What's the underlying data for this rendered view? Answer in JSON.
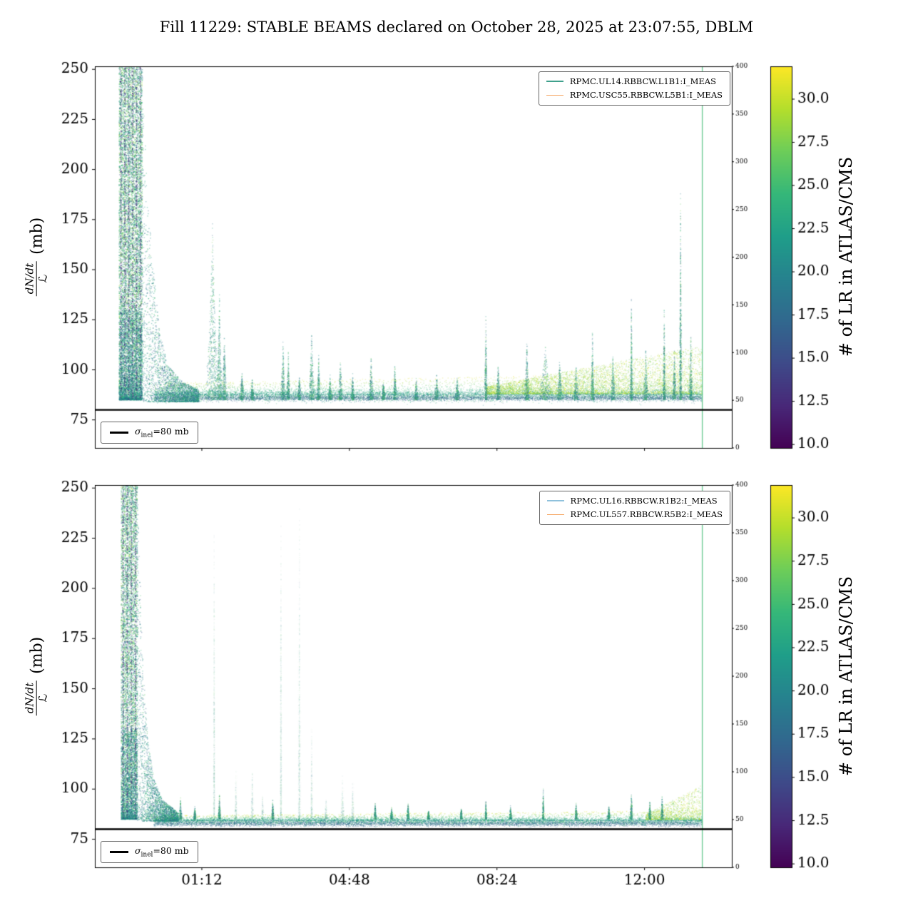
{
  "title": "Fill 11229: STABLE BEAMS declared on October 28, 2025 at 23:07:55, DBLM",
  "ylabel": {
    "num": "dN/dt",
    "den": "ℒ",
    "unit": "(mb)"
  },
  "colorbar": {
    "label": "# of LR in ATLAS/CMS",
    "ticks": [
      10.0,
      12.5,
      15.0,
      17.5,
      20.0,
      22.5,
      25.0,
      27.5,
      30.0
    ],
    "lim": [
      9.8,
      31.9
    ],
    "colormap": "viridis"
  },
  "chart_data": [
    {
      "type": "scatter",
      "panel": "top",
      "series": [
        {
          "name": "RPMC.UL14.RBBCW.L1B1:I_MEAS",
          "color": "#3fa08c"
        },
        {
          "name": "RPMC.USC55.RBBCW.L5B1:I_MEAS",
          "color": "#f5a45f"
        }
      ],
      "sigma": {
        "sym": "σ",
        "sub": "inel",
        "rest": "=80 mb",
        "value": 80
      },
      "xlim": [
        -0.54,
        15.0
      ],
      "ylim": [
        61,
        251.5
      ],
      "xticks": [
        {
          "pos": 2.07,
          "label": "01:12"
        },
        {
          "pos": 5.67,
          "label": "04:48"
        },
        {
          "pos": 9.27,
          "label": "08:24"
        },
        {
          "pos": 12.87,
          "label": "12:00"
        }
      ],
      "yticks": [
        75,
        100,
        125,
        150,
        175,
        200,
        225,
        250
      ],
      "right_axis": {
        "lim": [
          0,
          400
        ],
        "ticks": [
          0,
          50,
          100,
          150,
          200,
          250,
          300,
          350,
          400
        ]
      },
      "baseline": {
        "start": 0.9,
        "end": 14.28,
        "center": 87,
        "core_sd": 1.3,
        "tail_amp_start": 6,
        "tail_amp_end": 11,
        "n": 9000
      },
      "yellow_band": {
        "start": 9.0,
        "end": 14.28,
        "amp": 24,
        "n": 5200
      },
      "burst": {
        "start": 0.05,
        "end": 0.62,
        "ymax": 251.5,
        "n": 7500,
        "streaks": 6
      },
      "decay": [
        [
          0.62,
          251
        ],
        [
          0.75,
          185
        ],
        [
          0.9,
          148
        ],
        [
          1.05,
          118
        ],
        [
          1.25,
          102
        ],
        [
          1.6,
          94
        ],
        [
          2.0,
          90
        ]
      ],
      "spikes": [
        [
          2.33,
          176,
          0.13,
          0
        ],
        [
          2.5,
          140,
          0.06,
          0
        ],
        [
          2.62,
          122,
          0.05,
          0
        ],
        [
          3.05,
          100,
          0.05,
          0
        ],
        [
          3.3,
          96,
          0.04,
          0
        ],
        [
          4.05,
          116,
          0.05,
          0
        ],
        [
          4.18,
          110,
          0.04,
          0
        ],
        [
          4.45,
          98,
          0.04,
          0
        ],
        [
          4.75,
          121,
          0.06,
          0
        ],
        [
          4.92,
          108,
          0.04,
          0
        ],
        [
          5.2,
          98,
          0.04,
          0
        ],
        [
          5.45,
          106,
          0.05,
          0
        ],
        [
          5.75,
          99,
          0.04,
          0
        ],
        [
          6.2,
          108,
          0.05,
          0
        ],
        [
          6.5,
          96,
          0.04,
          0
        ],
        [
          6.78,
          104,
          0.04,
          0
        ],
        [
          7.3,
          96,
          0.05,
          0
        ],
        [
          7.8,
          98,
          0.05,
          0
        ],
        [
          8.3,
          97,
          0.05,
          0
        ],
        [
          9.0,
          131,
          0.03,
          0
        ],
        [
          9.3,
          104,
          0.05,
          0
        ],
        [
          10.0,
          117,
          0.05,
          0
        ],
        [
          10.45,
          113,
          0.14,
          0
        ],
        [
          10.8,
          106,
          0.06,
          0
        ],
        [
          11.2,
          104,
          0.06,
          0
        ],
        [
          11.6,
          121,
          0.04,
          0
        ],
        [
          12.1,
          108,
          0.05,
          0
        ],
        [
          12.55,
          136,
          0.03,
          0
        ],
        [
          12.9,
          112,
          0.05,
          0
        ],
        [
          13.35,
          133,
          0.03,
          0
        ],
        [
          13.6,
          112,
          0.04,
          0
        ],
        [
          13.75,
          192,
          0.025,
          0
        ],
        [
          14.0,
          120,
          0.04,
          0
        ]
      ],
      "end_line_x": 14.28
    },
    {
      "type": "scatter",
      "panel": "bottom",
      "series": [
        {
          "name": "RPMC.UL16.RBBCW.R1B2:I_MEAS",
          "color": "#8fc1dc"
        },
        {
          "name": "RPMC.UL557.RBBCW.R5B2:I_MEAS",
          "color": "#f5a45f"
        }
      ],
      "sigma": {
        "sym": "σ",
        "sub": "inel",
        "rest": "=80 mb",
        "value": 80
      },
      "xlim": [
        -0.54,
        15.0
      ],
      "ylim": [
        61,
        251.5
      ],
      "xticks": [
        {
          "pos": 2.07,
          "label": "01:12"
        },
        {
          "pos": 5.67,
          "label": "04:48"
        },
        {
          "pos": 9.27,
          "label": "08:24"
        },
        {
          "pos": 12.87,
          "label": "12:00"
        }
      ],
      "yticks": [
        75,
        100,
        125,
        150,
        175,
        200,
        225,
        250
      ],
      "right_axis": {
        "lim": [
          0,
          400
        ],
        "ticks": [
          0,
          50,
          100,
          150,
          200,
          250,
          300,
          350,
          400
        ]
      },
      "baseline": {
        "start": 0.9,
        "end": 14.28,
        "center": 83.8,
        "core_sd": 0.9,
        "tail_amp_start": 2.5,
        "tail_amp_end": 5,
        "n": 9000
      },
      "yellow_band": {
        "start": 12.9,
        "end": 14.25,
        "amp": 17,
        "n": 1100
      },
      "burst": {
        "start": 0.1,
        "end": 0.5,
        "ymax": 251.5,
        "n": 5200,
        "streaks": 4
      },
      "decay": [
        [
          0.5,
          250
        ],
        [
          0.62,
          170
        ],
        [
          0.75,
          125
        ],
        [
          0.9,
          105
        ],
        [
          1.1,
          95
        ],
        [
          1.5,
          88
        ]
      ],
      "spikes": [
        [
          1.55,
          96,
          0.03,
          0
        ],
        [
          1.9,
          92,
          0.03,
          0
        ],
        [
          2.37,
          245,
          0.012,
          1
        ],
        [
          2.5,
          98,
          0.03,
          0
        ],
        [
          2.9,
          110,
          0.025,
          1
        ],
        [
          3.3,
          113,
          0.025,
          1
        ],
        [
          3.55,
          99,
          0.03,
          1
        ],
        [
          3.8,
          95,
          0.03,
          0
        ],
        [
          4.0,
          248,
          0.015,
          1
        ],
        [
          4.45,
          250,
          0.02,
          1
        ],
        [
          4.75,
          132,
          0.02,
          1
        ],
        [
          5.1,
          96,
          0.03,
          1
        ],
        [
          5.5,
          107,
          0.035,
          1
        ],
        [
          5.75,
          104,
          0.03,
          1
        ],
        [
          6.3,
          93,
          0.03,
          0
        ],
        [
          6.7,
          91,
          0.03,
          0
        ],
        [
          7.1,
          94,
          0.03,
          0
        ],
        [
          7.6,
          90,
          0.03,
          0
        ],
        [
          8.4,
          91,
          0.03,
          0
        ],
        [
          9.0,
          95,
          0.02,
          0
        ],
        [
          9.6,
          92,
          0.03,
          0
        ],
        [
          10.4,
          101,
          0.02,
          0
        ],
        [
          11.2,
          93,
          0.03,
          0
        ],
        [
          12.0,
          92,
          0.03,
          0
        ],
        [
          12.55,
          98,
          0.03,
          0
        ],
        [
          13.0,
          95,
          0.03,
          0
        ],
        [
          13.3,
          97,
          0.03,
          0
        ]
      ],
      "end_line_x": 14.28
    }
  ]
}
